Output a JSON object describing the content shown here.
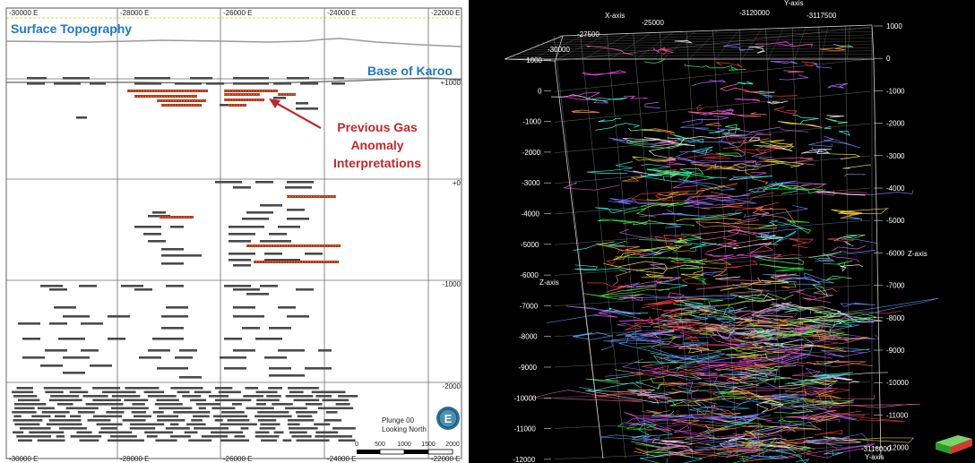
{
  "left_panel": {
    "x_ticks_top": [
      "-30000 E",
      "-28000 E",
      "-26000 E",
      "-24000 E",
      "-22000 E"
    ],
    "x_ticks_bottom": [
      "-30000 E",
      "-28000 E",
      "-26000 E",
      "-24000 E",
      "-22000 E"
    ],
    "y_ticks": [
      "+1000",
      "+0",
      "-1000",
      "-2000"
    ],
    "surface_topography_label": "Surface Topography",
    "base_karoo_label": "Base of Karoo",
    "annotation_lines": [
      "Previous Gas",
      "Anomaly",
      "Interpretations"
    ],
    "plunge_label": "Plunge 00",
    "looking_label": "Looking North",
    "compass_letter": "E",
    "scale_ticks": [
      "0",
      "500",
      "1000",
      "1500",
      "2000"
    ],
    "colors": {
      "sill": "#4a4a4a",
      "gas": "#b5391a",
      "label_blue": "#1f77c8",
      "annotation_red": "#c0282d",
      "arrow": "#c0282d"
    }
  },
  "right_panel": {
    "x_axis_label": "X-axis",
    "y_axis_label_top": "Y-axis",
    "y_axis_label_bottom": "Y-axis",
    "z_axis_label_left": "Z-axis",
    "z_axis_label_right": "Z-axis",
    "x_ticks": [
      "-30000",
      "-27500",
      "-25000"
    ],
    "y_ticks_top": [
      "-3120000",
      "-3117500"
    ],
    "y_tick_bottom": "-3116000",
    "left_z_ticks": [
      "1000",
      "0",
      "-1000",
      "-2000",
      "-3000",
      "-4000",
      "-5000",
      "-6000",
      "-7000",
      "-8000",
      "-9000",
      "-10000",
      "-11000",
      "-12000"
    ],
    "right_z_ticks": [
      "1000",
      "0",
      "-1000",
      "-2000",
      "-3000",
      "-4000",
      "-5000",
      "-6000",
      "-7000",
      "-8000",
      "-9000",
      "-10000",
      "-11000",
      "-12000"
    ],
    "colors": {
      "background": "#000000",
      "grid": "#9a9a9a",
      "tick_text": "#ffffff"
    }
  }
}
